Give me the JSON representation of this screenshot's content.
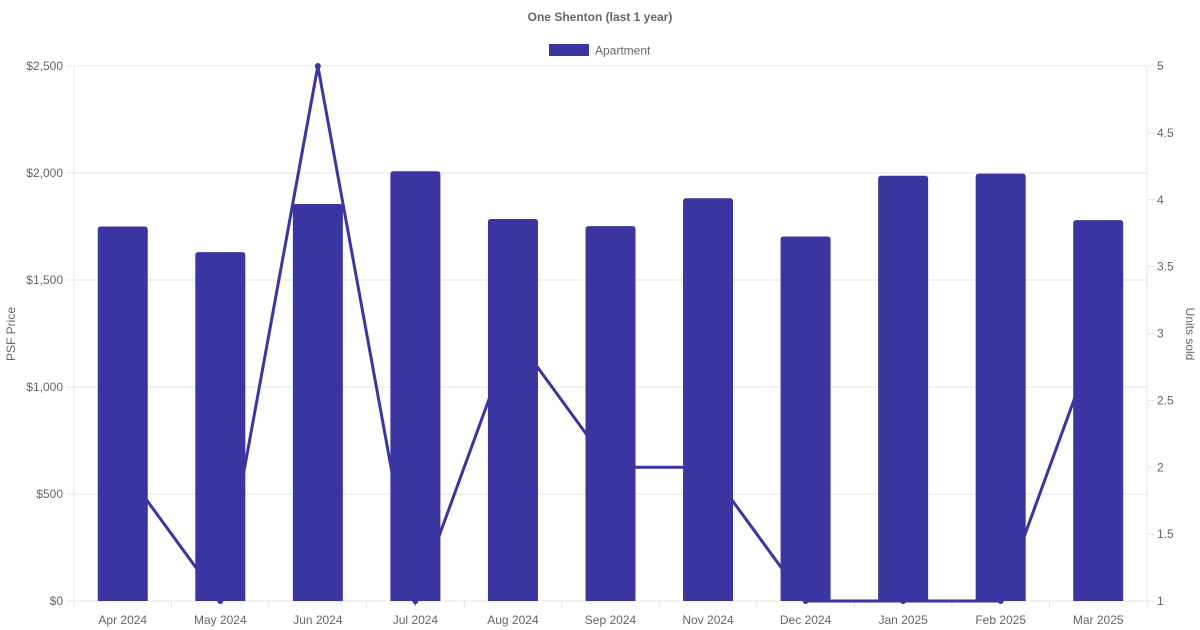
{
  "chart_data": {
    "type": "bar",
    "title": "One Shenton (last 1 year)",
    "categories": [
      "Apr 2024",
      "May 2024",
      "Jun 2024",
      "Jul 2024",
      "Aug 2024",
      "Sep 2024",
      "Nov 2024",
      "Dec 2024",
      "Jan 2025",
      "Feb 2025",
      "Mar 2025"
    ],
    "series": [
      {
        "name": "Apartment",
        "type": "bar",
        "axis": "left",
        "values": [
          1750,
          1630,
          1855,
          2008,
          1785,
          1752,
          1882,
          1703,
          1987,
          1997,
          1780
        ]
      },
      {
        "type": "line",
        "axis": "right",
        "values": [
          2,
          1,
          5,
          1,
          3,
          2,
          2,
          1,
          1,
          1,
          3
        ]
      }
    ],
    "ylabel": "PSF Price",
    "y2label": "Units sold",
    "ylim": [
      0,
      2500
    ],
    "y2lim": [
      1,
      5
    ],
    "yticks": [
      "$0",
      "$500",
      "$1,000",
      "$1,500",
      "$2,000",
      "$2,500"
    ],
    "y2ticks": [
      "1",
      "1.5",
      "2",
      "2.5",
      "3",
      "3.5",
      "4",
      "4.5",
      "5"
    ],
    "legend_position": "top",
    "grid": true,
    "colors": {
      "bar": "#3a35a1",
      "line": "#3a35a1",
      "grid": "#e6e6e6",
      "text": "#666666"
    }
  }
}
